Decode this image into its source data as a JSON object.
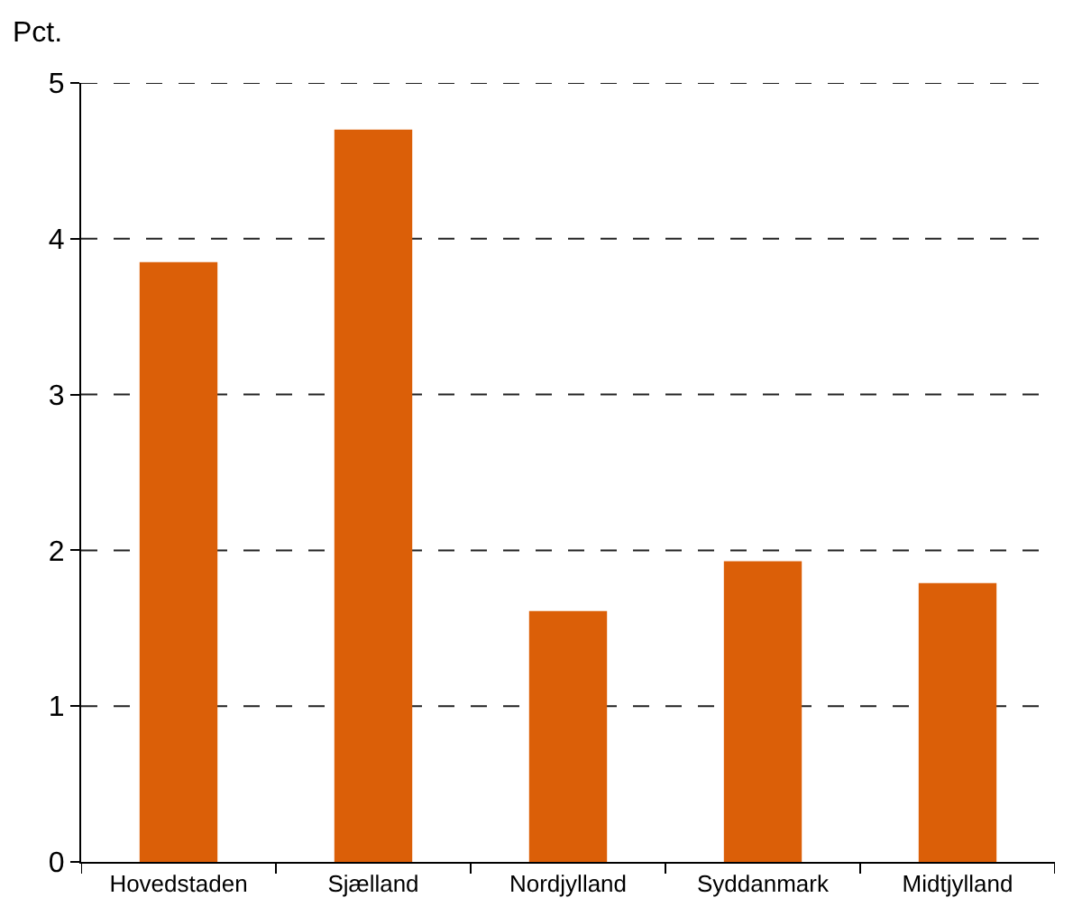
{
  "chart_data": {
    "type": "bar",
    "ylabel": "Pct.",
    "categories": [
      "Hovedstaden",
      "Sjælland",
      "Nordjylland",
      "Syddanmark",
      "Midtjylland"
    ],
    "values": [
      3.85,
      4.7,
      1.61,
      1.93,
      1.79
    ],
    "color": "#db5f08",
    "ylim": [
      0,
      5
    ],
    "yticks": [
      0,
      1,
      2,
      3,
      4,
      5
    ],
    "grid": "y",
    "line_style": "dashed"
  }
}
